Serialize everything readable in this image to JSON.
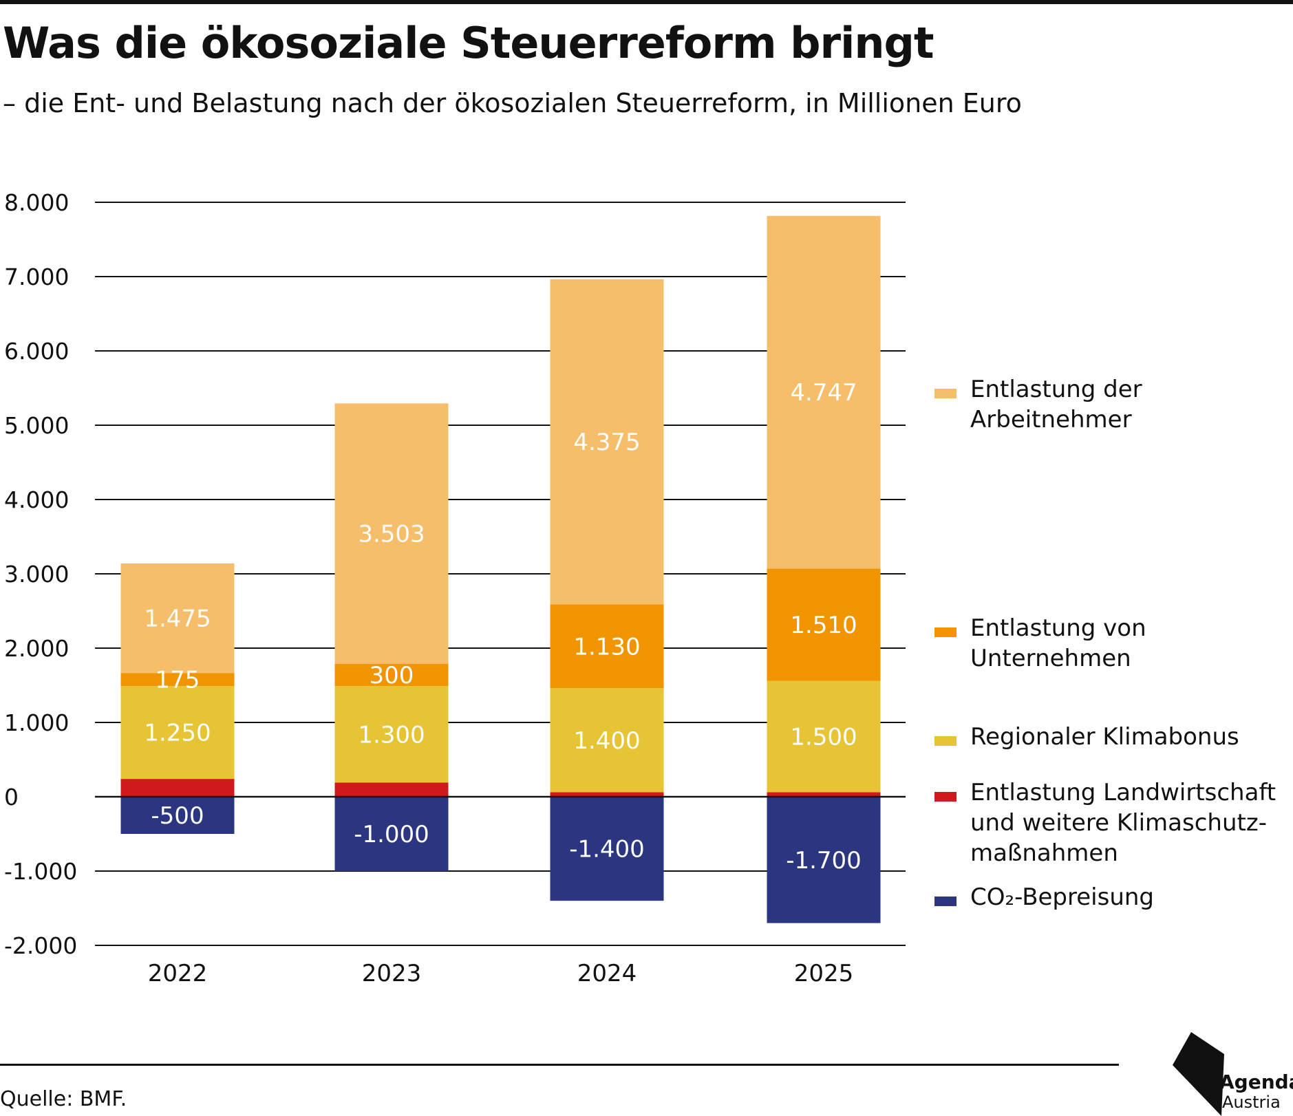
{
  "header": {
    "title": "Was die ökosoziale Steuerreform bringt",
    "subtitle": "– die Ent- und Belastung nach der ökosozialen Steuerreform, in Millionen Euro"
  },
  "chart_data": {
    "type": "bar",
    "stacked": true,
    "title": "Was die ökosoziale Steuerreform bringt",
    "subtitle": "– die Ent- und Belastung nach der ökosozialen Steuerreform, in Millionen Euro",
    "xlabel": "",
    "ylabel": "",
    "ylim": [
      -2000,
      8000
    ],
    "yticks": [
      8000,
      7000,
      6000,
      5000,
      4000,
      3000,
      2000,
      1000,
      0,
      -1000,
      -2000
    ],
    "ytick_labels": [
      "8.000",
      "7.000",
      "6.000",
      "5.000",
      "4.000",
      "3.000",
      "2.000",
      "1.000",
      "0",
      "-1.000",
      "-2.000"
    ],
    "grid": true,
    "legend_position": "right",
    "categories": [
      "2022",
      "2023",
      "2024",
      "2025"
    ],
    "series": [
      {
        "name": "CO₂-Bepreisung",
        "color": "#2b3580",
        "values": [
          -500,
          -1000,
          -1400,
          -1700
        ],
        "labels": [
          "-500",
          "-1.000",
          "-1.400",
          "-1.700"
        ]
      },
      {
        "name": "Entlastung Landwirtschaft und weitere Klimaschutz-maßnahmen",
        "color": "#d0191c",
        "values": [
          240,
          190,
          60,
          60
        ],
        "labels": [
          "",
          "",
          "",
          ""
        ]
      },
      {
        "name": "Regionaler Klimabonus",
        "color": "#e6c435",
        "values": [
          1250,
          1300,
          1400,
          1500
        ],
        "labels": [
          "1.250",
          "1.300",
          "1.400",
          "1.500"
        ]
      },
      {
        "name": "Entlastung von Unternehmen",
        "color": "#f09400",
        "values": [
          175,
          300,
          1130,
          1510
        ],
        "labels": [
          "175",
          "300",
          "1.130",
          "1.510"
        ]
      },
      {
        "name": "Entlastung der Arbeitnehmer",
        "color": "#f6be6b",
        "values": [
          1475,
          3503,
          4375,
          4747
        ],
        "labels": [
          "1.475",
          "3.503",
          "4.375",
          "4.747"
        ]
      }
    ]
  },
  "legend": [
    {
      "label": "Entlastung der Arbeitnehmer",
      "color": "#f6be6b"
    },
    {
      "label": "Entlastung von Unternehmen",
      "color": "#f09400"
    },
    {
      "label": "Regionaler Klimabonus",
      "color": "#e6c435"
    },
    {
      "label": "Entlastung Landwirtschaft und weitere Klimaschutz-maßnahmen",
      "color": "#d0191c"
    },
    {
      "label": "CO₂-Bepreisung",
      "color": "#2b3580"
    }
  ],
  "footer": {
    "source": "Quelle: BMF.",
    "logo_line1": "Agenda",
    "logo_line2": "Austria"
  }
}
